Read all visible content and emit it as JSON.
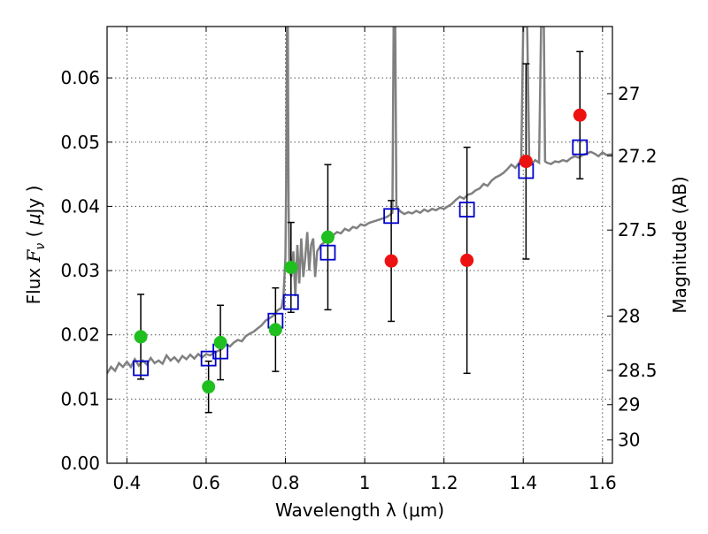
{
  "chart_data": {
    "type": "scatter",
    "xlabel": "Wavelength  λ (μm)",
    "ylabel": "Flux  F_ν  ( μJy )",
    "ylabel_parts": {
      "prefix": "Flux  ",
      "var": "F",
      "sub": "ν",
      "mid": "  ( ",
      "mu": "μ",
      "suffix": "Jy )"
    },
    "right_label": "Magnitude (AB)",
    "xlim": [
      0.35,
      1.625
    ],
    "ylim": [
      0.0,
      0.068
    ],
    "grid": true,
    "x_ticks": [
      {
        "v": 0.4,
        "label": "0.4"
      },
      {
        "v": 0.6,
        "label": "0.6"
      },
      {
        "v": 0.8,
        "label": "0.8"
      },
      {
        "v": 1.0,
        "label": "1"
      },
      {
        "v": 1.2,
        "label": "1.2"
      },
      {
        "v": 1.4,
        "label": "1.4"
      },
      {
        "v": 1.6,
        "label": "1.6"
      }
    ],
    "y_ticks": [
      {
        "v": 0.0,
        "label": "0.00"
      },
      {
        "v": 0.01,
        "label": "0.01"
      },
      {
        "v": 0.02,
        "label": "0.02"
      },
      {
        "v": 0.03,
        "label": "0.03"
      },
      {
        "v": 0.04,
        "label": "0.04"
      },
      {
        "v": 0.05,
        "label": "0.05"
      },
      {
        "v": 0.06,
        "label": "0.06"
      }
    ],
    "mag_ticks": [
      {
        "v": 27.0,
        "label": "27"
      },
      {
        "v": 27.2,
        "label": "27.2"
      },
      {
        "v": 27.5,
        "label": "27.5"
      },
      {
        "v": 28.0,
        "label": "28"
      },
      {
        "v": 28.5,
        "label": "28.5"
      },
      {
        "v": 29.0,
        "label": "29"
      },
      {
        "v": 30.0,
        "label": "30"
      }
    ],
    "green_points": [
      {
        "x": 0.435,
        "y": 0.0197,
        "yerr": 0.0066
      },
      {
        "x": 0.606,
        "y": 0.0119,
        "yerr": 0.004
      },
      {
        "x": 0.636,
        "y": 0.0188,
        "yerr": 0.0058
      },
      {
        "x": 0.775,
        "y": 0.0208,
        "yerr": 0.0065
      },
      {
        "x": 0.814,
        "y": 0.0305,
        "yerr": 0.007
      },
      {
        "x": 0.907,
        "y": 0.0352,
        "yerr": 0.0113
      }
    ],
    "red_points": [
      {
        "x": 1.067,
        "y": 0.0315,
        "yerr": 0.0094
      },
      {
        "x": 1.258,
        "y": 0.0316,
        "yerr": 0.0176
      },
      {
        "x": 1.407,
        "y": 0.047,
        "yerr": 0.0152
      },
      {
        "x": 1.543,
        "y": 0.0542,
        "yerr": 0.0099
      }
    ],
    "model_photometry": [
      {
        "x": 0.435,
        "y": 0.0148
      },
      {
        "x": 0.606,
        "y": 0.0163
      },
      {
        "x": 0.636,
        "y": 0.0174
      },
      {
        "x": 0.775,
        "y": 0.0222
      },
      {
        "x": 0.814,
        "y": 0.0251
      },
      {
        "x": 0.907,
        "y": 0.0328
      },
      {
        "x": 1.067,
        "y": 0.0385
      },
      {
        "x": 1.258,
        "y": 0.0395
      },
      {
        "x": 1.407,
        "y": 0.0455
      },
      {
        "x": 1.543,
        "y": 0.0492
      }
    ],
    "spectrum": [
      [
        0.35,
        0.014
      ],
      [
        0.36,
        0.015
      ],
      [
        0.37,
        0.0144
      ],
      [
        0.38,
        0.0156
      ],
      [
        0.39,
        0.015
      ],
      [
        0.4,
        0.0158
      ],
      [
        0.41,
        0.015
      ],
      [
        0.42,
        0.0162
      ],
      [
        0.43,
        0.0152
      ],
      [
        0.44,
        0.016
      ],
      [
        0.45,
        0.0154
      ],
      [
        0.46,
        0.0164
      ],
      [
        0.47,
        0.0156
      ],
      [
        0.48,
        0.016
      ],
      [
        0.49,
        0.0155
      ],
      [
        0.5,
        0.0168
      ],
      [
        0.51,
        0.016
      ],
      [
        0.52,
        0.0165
      ],
      [
        0.53,
        0.0158
      ],
      [
        0.54,
        0.0167
      ],
      [
        0.55,
        0.0162
      ],
      [
        0.56,
        0.0169
      ],
      [
        0.57,
        0.0163
      ],
      [
        0.58,
        0.017
      ],
      [
        0.59,
        0.0165
      ],
      [
        0.6,
        0.017
      ],
      [
        0.61,
        0.0168
      ],
      [
        0.62,
        0.0172
      ],
      [
        0.63,
        0.0175
      ],
      [
        0.64,
        0.0178
      ],
      [
        0.65,
        0.0185
      ],
      [
        0.66,
        0.0182
      ],
      [
        0.67,
        0.0188
      ],
      [
        0.68,
        0.0192
      ],
      [
        0.69,
        0.019
      ],
      [
        0.7,
        0.0198
      ],
      [
        0.71,
        0.0202
      ],
      [
        0.72,
        0.0205
      ],
      [
        0.73,
        0.021
      ],
      [
        0.74,
        0.0215
      ],
      [
        0.75,
        0.0222
      ],
      [
        0.76,
        0.0226
      ],
      [
        0.77,
        0.023
      ],
      [
        0.78,
        0.0238
      ],
      [
        0.79,
        0.0242
      ],
      [
        0.795,
        0.026
      ],
      [
        0.8,
        0.032
      ],
      [
        0.802,
        0.044
      ],
      [
        0.804,
        0.068
      ],
      [
        0.806,
        0.068
      ],
      [
        0.808,
        0.04
      ],
      [
        0.81,
        0.03
      ],
      [
        0.815,
        0.029
      ],
      [
        0.82,
        0.033
      ],
      [
        0.825,
        0.026
      ],
      [
        0.83,
        0.034
      ],
      [
        0.835,
        0.028
      ],
      [
        0.84,
        0.035
      ],
      [
        0.845,
        0.029
      ],
      [
        0.85,
        0.032
      ],
      [
        0.855,
        0.036
      ],
      [
        0.86,
        0.03
      ],
      [
        0.865,
        0.034
      ],
      [
        0.87,
        0.035
      ],
      [
        0.875,
        0.029
      ],
      [
        0.88,
        0.033
      ],
      [
        0.89,
        0.034
      ],
      [
        0.9,
        0.0345
      ],
      [
        0.91,
        0.035
      ],
      [
        0.92,
        0.0355
      ],
      [
        0.93,
        0.036
      ],
      [
        0.94,
        0.0358
      ],
      [
        0.95,
        0.0365
      ],
      [
        0.96,
        0.0362
      ],
      [
        0.97,
        0.0368
      ],
      [
        0.98,
        0.0366
      ],
      [
        0.99,
        0.0372
      ],
      [
        1.0,
        0.037
      ],
      [
        1.01,
        0.0374
      ],
      [
        1.02,
        0.0376
      ],
      [
        1.03,
        0.0378
      ],
      [
        1.04,
        0.038
      ],
      [
        1.05,
        0.0382
      ],
      [
        1.06,
        0.0385
      ],
      [
        1.07,
        0.039
      ],
      [
        1.073,
        0.068
      ],
      [
        1.077,
        0.068
      ],
      [
        1.08,
        0.04
      ],
      [
        1.09,
        0.0392
      ],
      [
        1.1,
        0.0388
      ],
      [
        1.11,
        0.0391
      ],
      [
        1.12,
        0.0389
      ],
      [
        1.13,
        0.0393
      ],
      [
        1.14,
        0.039
      ],
      [
        1.15,
        0.0395
      ],
      [
        1.16,
        0.0392
      ],
      [
        1.17,
        0.0396
      ],
      [
        1.18,
        0.0394
      ],
      [
        1.19,
        0.0398
      ],
      [
        1.2,
        0.0396
      ],
      [
        1.21,
        0.04
      ],
      [
        1.22,
        0.0404
      ],
      [
        1.23,
        0.041
      ],
      [
        1.24,
        0.0415
      ],
      [
        1.25,
        0.0412
      ],
      [
        1.26,
        0.0418
      ],
      [
        1.27,
        0.042
      ],
      [
        1.28,
        0.0425
      ],
      [
        1.29,
        0.0428
      ],
      [
        1.3,
        0.0435
      ],
      [
        1.31,
        0.0432
      ],
      [
        1.32,
        0.044
      ],
      [
        1.33,
        0.0445
      ],
      [
        1.34,
        0.0448
      ],
      [
        1.35,
        0.0452
      ],
      [
        1.36,
        0.0458
      ],
      [
        1.37,
        0.0465
      ],
      [
        1.38,
        0.046
      ],
      [
        1.39,
        0.0468
      ],
      [
        1.395,
        0.0475
      ],
      [
        1.4,
        0.068
      ],
      [
        1.41,
        0.068
      ],
      [
        1.415,
        0.047
      ],
      [
        1.42,
        0.0465
      ],
      [
        1.43,
        0.0472
      ],
      [
        1.44,
        0.0468
      ],
      [
        1.445,
        0.068
      ],
      [
        1.452,
        0.068
      ],
      [
        1.455,
        0.047
      ],
      [
        1.46,
        0.0468
      ],
      [
        1.47,
        0.0466
      ],
      [
        1.48,
        0.047
      ],
      [
        1.49,
        0.0469
      ],
      [
        1.5,
        0.0472
      ],
      [
        1.51,
        0.047
      ],
      [
        1.52,
        0.0475
      ],
      [
        1.53,
        0.0478
      ],
      [
        1.54,
        0.0476
      ],
      [
        1.55,
        0.048
      ],
      [
        1.56,
        0.0482
      ],
      [
        1.57,
        0.0485
      ],
      [
        1.58,
        0.0482
      ],
      [
        1.59,
        0.0478
      ],
      [
        1.6,
        0.0484
      ],
      [
        1.61,
        0.048
      ],
      [
        1.625,
        0.0481
      ]
    ]
  },
  "colors": {
    "green": "#1fbf1f",
    "red": "#ee1111",
    "blue_box": "#0000cc",
    "spectrum": "#808080",
    "grid": "#555555"
  }
}
